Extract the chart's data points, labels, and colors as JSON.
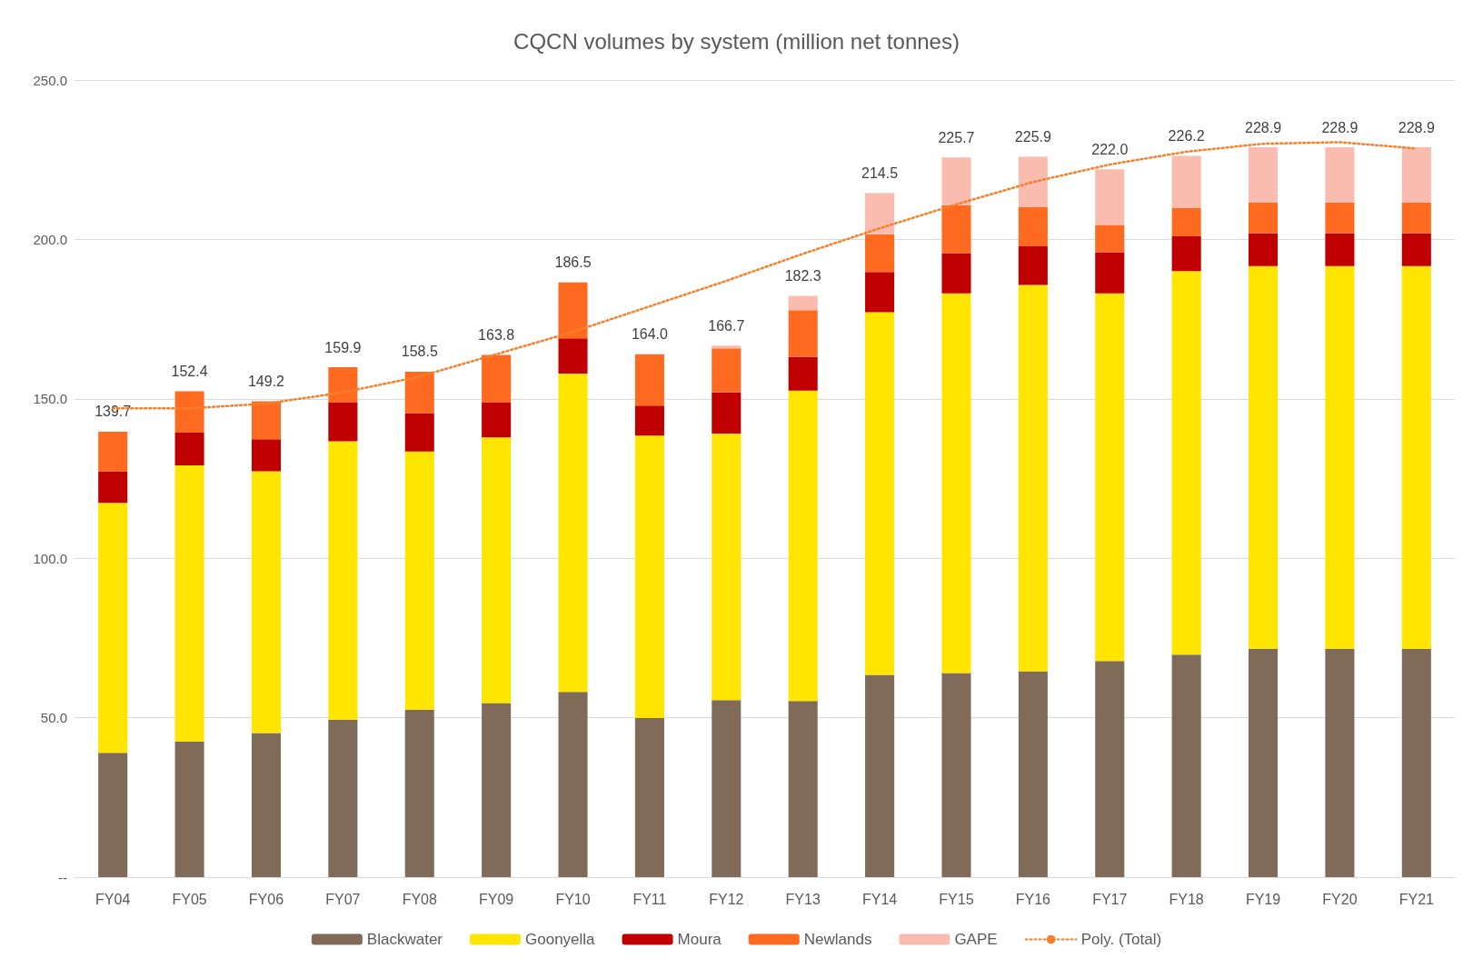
{
  "chart_data": {
    "type": "bar",
    "title": "CQCN volumes by system (million net tonnes)",
    "stacked": true,
    "categories": [
      "FY04",
      "FY05",
      "FY06",
      "FY07",
      "FY08",
      "FY09",
      "FY10",
      "FY11",
      "FY12",
      "FY13",
      "FY14",
      "FY15",
      "FY16",
      "FY17",
      "FY18",
      "FY19",
      "FY20",
      "FY21"
    ],
    "series": [
      {
        "name": "Blackwater",
        "color": "#7f6b58",
        "values": [
          39.0,
          42.5,
          45.2,
          49.3,
          52.5,
          54.6,
          58.1,
          49.9,
          55.5,
          55.2,
          63.4,
          64.0,
          64.6,
          67.8,
          69.8,
          71.6,
          71.6,
          71.6
        ]
      },
      {
        "name": "Goonyella",
        "color": "#ffe500",
        "values": [
          78.4,
          86.6,
          82.1,
          87.4,
          81.0,
          83.3,
          99.8,
          88.6,
          83.6,
          97.4,
          113.8,
          119.1,
          121.1,
          115.3,
          120.3,
          120.0,
          120.0,
          120.0
        ]
      },
      {
        "name": "Moura",
        "color": "#c00000",
        "values": [
          9.9,
          10.3,
          10.0,
          12.1,
          12.0,
          10.9,
          11.1,
          9.4,
          12.9,
          10.5,
          12.6,
          12.6,
          12.1,
          12.9,
          10.9,
          10.3,
          10.3,
          10.3
        ]
      },
      {
        "name": "Newlands",
        "color": "#ff6a21",
        "values": [
          12.4,
          13.0,
          11.9,
          11.1,
          13.0,
          15.0,
          17.5,
          16.1,
          13.8,
          14.7,
          11.8,
          15.0,
          12.3,
          8.5,
          8.8,
          9.7,
          9.7,
          9.7
        ]
      },
      {
        "name": "GAPE",
        "color": "#f9bcae",
        "values": [
          null,
          null,
          null,
          null,
          null,
          null,
          null,
          null,
          0.9,
          4.5,
          12.9,
          15.0,
          15.8,
          17.5,
          16.4,
          17.3,
          17.3,
          17.3
        ]
      },
      {
        "name": "Poly. (Total)",
        "type": "line",
        "color": "#f4802a",
        "line_style": "dotted",
        "marker": "none",
        "values": [
          147,
          147,
          148.5,
          152,
          157,
          164,
          171,
          179,
          187,
          195.5,
          203.5,
          211,
          218,
          223.5,
          227.5,
          230,
          230.5,
          228.5
        ]
      }
    ],
    "totals": [
      "139.7",
      "152.4",
      "149.2",
      "159.9",
      "158.5",
      "163.8",
      "186.5",
      "164.0",
      "166.7",
      "182.3",
      "214.5",
      "225.7",
      "225.9",
      "222.0",
      "226.2",
      "228.9",
      "228.9",
      "228.9"
    ],
    "ylim": [
      0,
      250
    ],
    "yticks": [
      {
        "value": 0,
        "label": "--"
      },
      {
        "value": 50,
        "label": "50.0"
      },
      {
        "value": 100,
        "label": "100.0"
      },
      {
        "value": 150,
        "label": "150.0"
      },
      {
        "value": 200,
        "label": "200.0"
      },
      {
        "value": 250,
        "label": "250.0"
      }
    ],
    "grid": "y",
    "legend": "bottom"
  }
}
